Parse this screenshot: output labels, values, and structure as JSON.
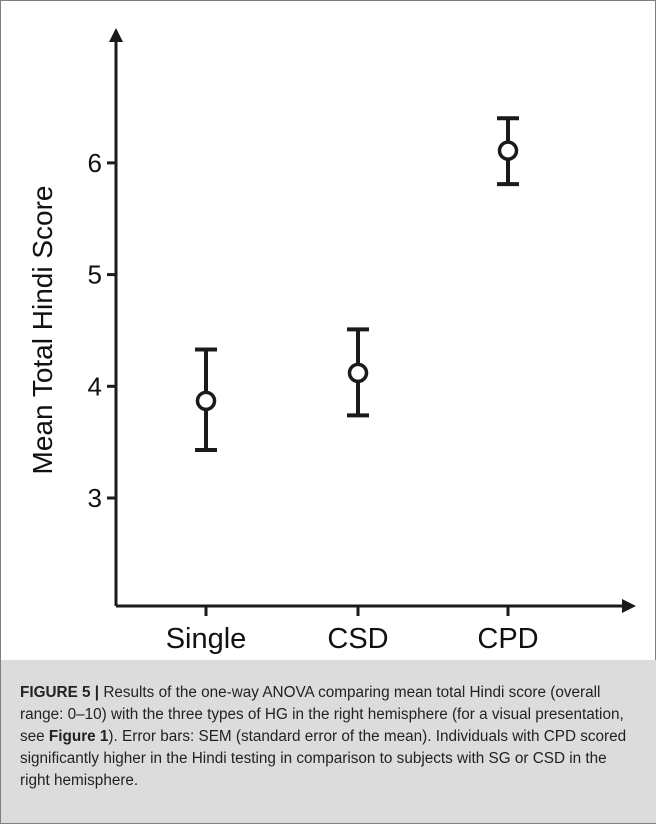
{
  "chart_data": {
    "type": "scatter",
    "categories": [
      "Single",
      "CSD",
      "CPD"
    ],
    "series": [
      {
        "means": [
          3.87,
          4.12,
          6.11
        ],
        "err_low": [
          3.43,
          3.74,
          5.81
        ],
        "err_high": [
          4.33,
          4.51,
          6.4
        ]
      }
    ],
    "ylabel": "Mean Total Hindi Score",
    "yticks": [
      3,
      4,
      5,
      6
    ],
    "ylim": [
      1.8,
      7.5
    ],
    "grid": false
  },
  "caption": {
    "label": "FIGURE 5 |",
    "text_1": " Results of the one-way ANOVA comparing mean total Hindi score (overall range: 0–10) with the three types of HG in the right hemisphere (for a visual presentation, see ",
    "figref": "Figure 1",
    "text_2": "). Error bars: SEM (standard error of the mean). Individuals with CPD scored significantly higher in the Hindi testing in comparison to subjects with SG or CSD in the right hemisphere."
  }
}
